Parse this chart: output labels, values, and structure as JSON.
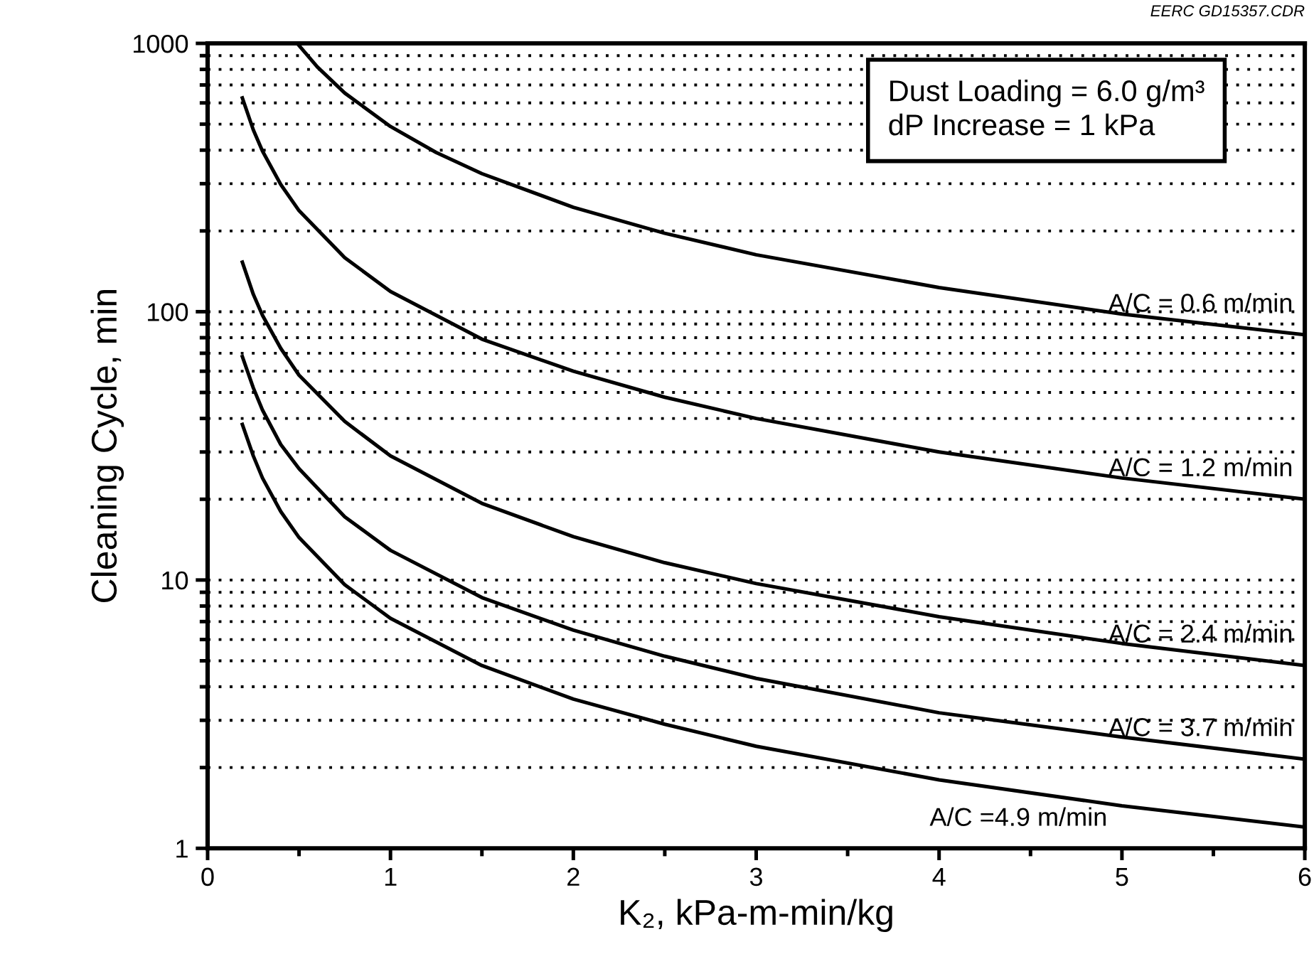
{
  "chart_data": {
    "type": "line",
    "xlabel": "K₂, kPa-m-min/kg",
    "ylabel": "Cleaning Cycle, min",
    "annotations": [
      "EERC GD15357.CDR",
      "Dust Loading = 6.0 g/m³\ndP Increase = 1 kPa"
    ],
    "xlim": [
      0,
      6
    ],
    "xticks": [
      0,
      1,
      2,
      3,
      4,
      5,
      6
    ],
    "ylim": [
      1,
      1000
    ],
    "yticks": [
      1,
      10,
      100,
      1000
    ],
    "log": "y",
    "grid": "y",
    "legend": false,
    "marker": "none",
    "line_style": "solid",
    "series": [
      {
        "name": "A/C = 0.6 m/min",
        "color": "#000000",
        "x": [
          0.49,
          0.6,
          0.75,
          1,
          1.25,
          1.5,
          2,
          2.5,
          3,
          4,
          5,
          6
        ],
        "values": [
          1000,
          817,
          653,
          490,
          392,
          327,
          245,
          196,
          163,
          123,
          98,
          82
        ]
      },
      {
        "name": "A/C = 1.2 m/min",
        "color": "#000000",
        "x": [
          0.19,
          0.25,
          0.3,
          0.4,
          0.5,
          0.75,
          1,
          1.5,
          2,
          2.5,
          3,
          4,
          5,
          6
        ],
        "values": [
          626,
          476,
          397,
          298,
          238,
          159,
          119,
          79,
          60,
          48,
          40,
          30,
          24,
          20
        ]
      },
      {
        "name": "A/C = 2.4 m/min",
        "color": "#000000",
        "x": [
          0.19,
          0.25,
          0.3,
          0.4,
          0.5,
          0.75,
          1,
          1.5,
          2,
          2.5,
          3,
          4,
          5,
          6
        ],
        "values": [
          153,
          116,
          97,
          73,
          58,
          39,
          29,
          19.3,
          14.5,
          11.6,
          9.7,
          7.3,
          5.8,
          4.8
        ]
      },
      {
        "name": "A/C = 3.7 m/min",
        "color": "#000000",
        "x": [
          0.19,
          0.25,
          0.3,
          0.4,
          0.5,
          0.75,
          1,
          1.5,
          2,
          2.5,
          3,
          4,
          5,
          6
        ],
        "values": [
          68,
          52,
          43,
          32,
          26,
          17.2,
          12.9,
          8.6,
          6.5,
          5.2,
          4.3,
          3.2,
          2.6,
          2.15
        ]
      },
      {
        "name": "A/C =4.9 m/min",
        "color": "#000000",
        "x": [
          0.19,
          0.25,
          0.3,
          0.4,
          0.5,
          0.75,
          1,
          1.5,
          2,
          2.5,
          3,
          4,
          5,
          6
        ],
        "values": [
          38,
          29,
          24,
          18,
          14.4,
          9.6,
          7.2,
          4.8,
          3.6,
          2.9,
          2.4,
          1.8,
          1.44,
          1.2
        ]
      }
    ]
  }
}
